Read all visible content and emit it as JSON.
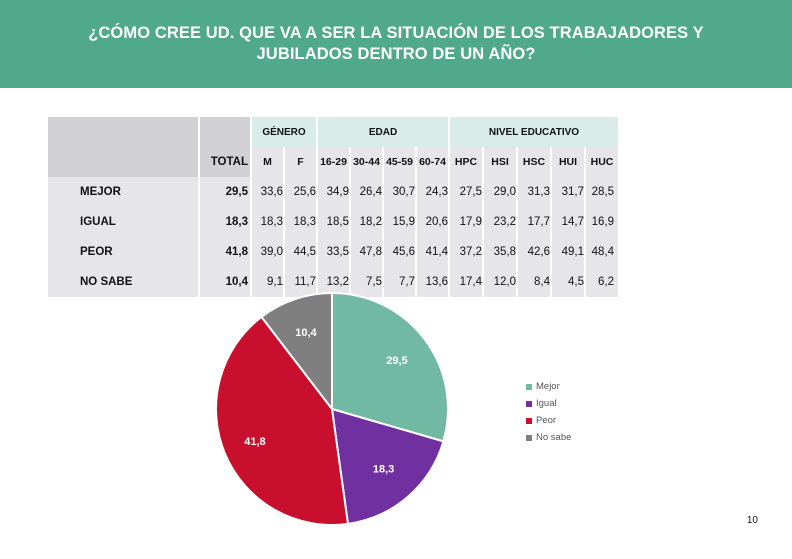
{
  "title": "¿CÓMO CREE UD. QUE VA A SER LA SITUACIÓN DE LOS TRABAJADORES Y JUBILADOS DENTRO DE UN AÑO?",
  "table": {
    "groups": {
      "genero": "GÉNERO",
      "edad": "EDAD",
      "nivel": "NIVEL EDUCATIVO"
    },
    "columns": [
      "TOTAL",
      "M",
      "F",
      "16-29",
      "30-44",
      "45-59",
      "60-74",
      "HPC",
      "HSI",
      "HSC",
      "HUI",
      "HUC"
    ],
    "rows": [
      {
        "label": "MEJOR",
        "values": [
          "29,5",
          "33,6",
          "25,6",
          "34,9",
          "26,4",
          "30,7",
          "24,3",
          "27,5",
          "29,0",
          "31,3",
          "31,7",
          "28,5"
        ]
      },
      {
        "label": "IGUAL",
        "values": [
          "18,3",
          "18,3",
          "18,3",
          "18,5",
          "18,2",
          "15,9",
          "20,6",
          "17,9",
          "23,2",
          "17,7",
          "14,7",
          "16,9"
        ]
      },
      {
        "label": "PEOR",
        "values": [
          "41,8",
          "39,0",
          "44,5",
          "33,5",
          "47,8",
          "45,6",
          "41,4",
          "37,2",
          "35,8",
          "42,6",
          "49,1",
          "48,4"
        ]
      },
      {
        "label": "NO SABE",
        "values": [
          "10,4",
          "9,1",
          "11,7",
          "13,2",
          "7,5",
          "7,7",
          "13,6",
          "17,4",
          "12,0",
          "8,4",
          "4,5",
          "6,2"
        ]
      }
    ]
  },
  "chart_data": {
    "type": "pie",
    "title": "",
    "slices": [
      {
        "name": "Mejor",
        "value": 29.5,
        "label": "29,5",
        "color": "#72b9a3"
      },
      {
        "name": "Igual",
        "value": 18.3,
        "label": "18,3",
        "color": "#7030a0"
      },
      {
        "name": "Peor",
        "value": 41.8,
        "label": "41,8",
        "color": "#c8102e"
      },
      {
        "name": "No sabe",
        "value": 10.4,
        "label": "10,4",
        "color": "#7f7f7f"
      }
    ],
    "legend_position": "right"
  },
  "page_number": "10",
  "colors": {
    "banner": "#4fa98a",
    "header_mint": "#d9ecea",
    "row_shade": "#e6e6e8"
  }
}
